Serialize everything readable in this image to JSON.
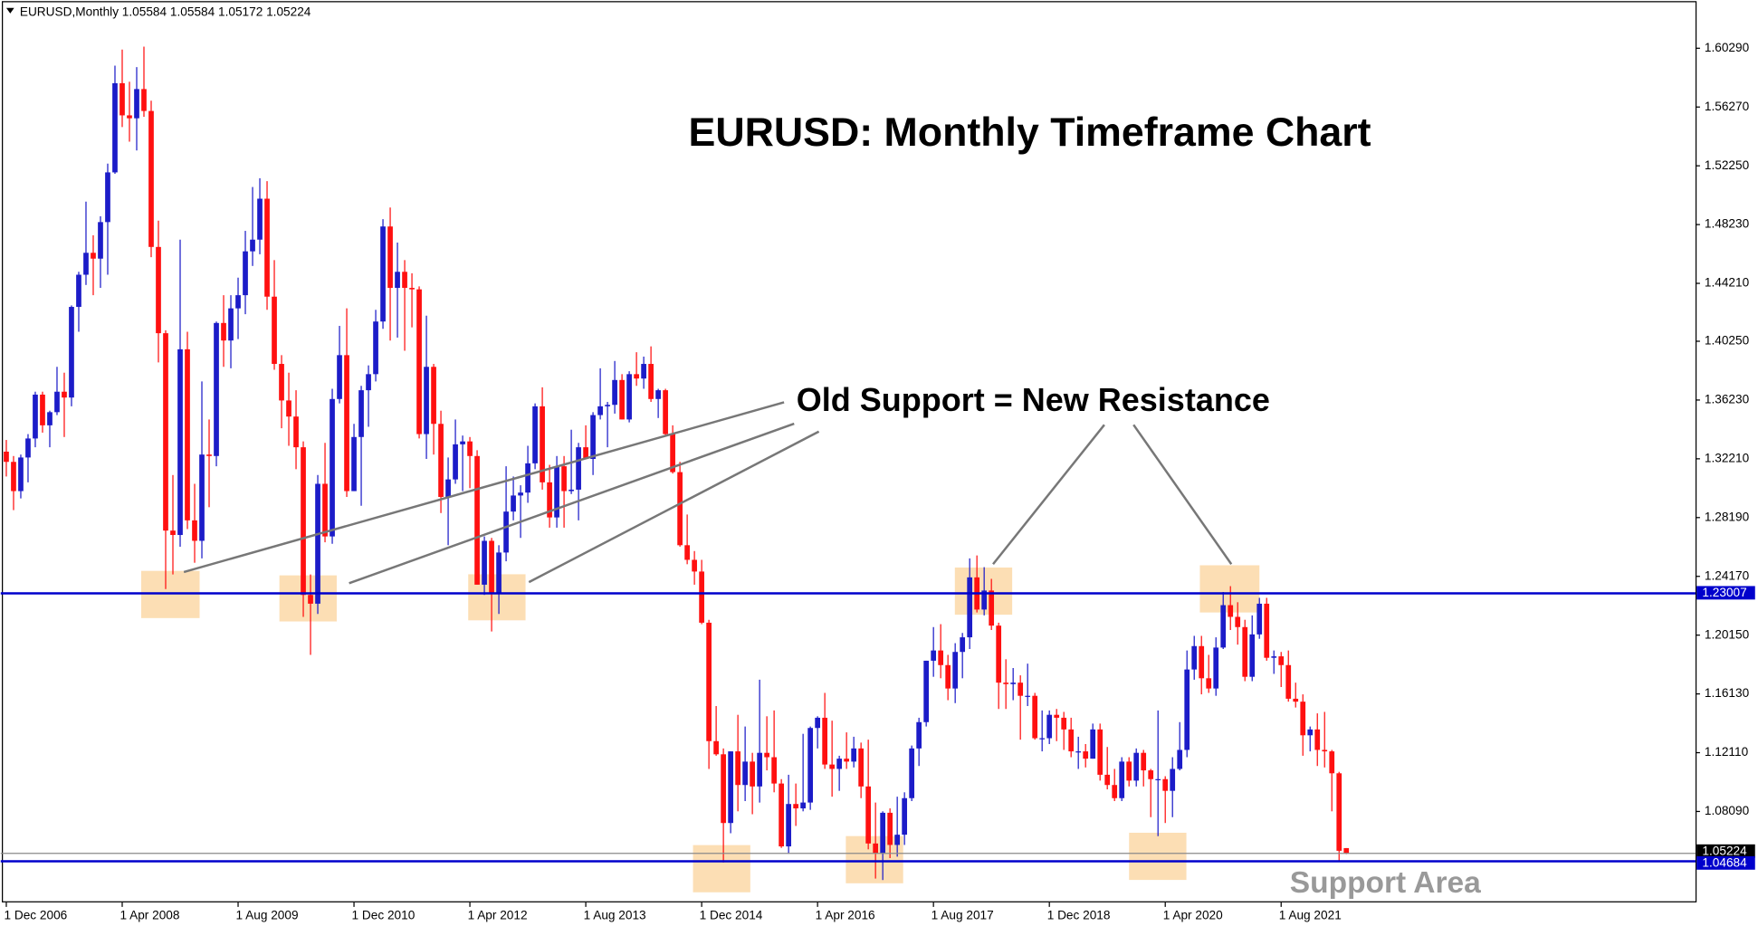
{
  "chart_data": {
    "type": "candlestick",
    "header": "EURUSD,Monthly  1.05584 1.05584 1.05172 1.05224",
    "title": "EURUSD: Monthly Timeframe Chart",
    "annotations": [
      "Old Support = New Resistance",
      "Support Area"
    ],
    "bull_color": "#1c1cc8",
    "bear_color": "#ff1010",
    "ylim": [
      1.0187,
      1.6359
    ],
    "yticks": [
      {
        "value": 1.0809,
        "label": "1.08090"
      },
      {
        "value": 1.1211,
        "label": "1.12110"
      },
      {
        "value": 1.1613,
        "label": "1.16130"
      },
      {
        "value": 1.2015,
        "label": "1.20150"
      },
      {
        "value": 1.2417,
        "label": "1.24170"
      },
      {
        "value": 1.2819,
        "label": "1.28190"
      },
      {
        "value": 1.3221,
        "label": "1.32210"
      },
      {
        "value": 1.3623,
        "label": "1.36230"
      },
      {
        "value": 1.4025,
        "label": "1.40250"
      },
      {
        "value": 1.4421,
        "label": "1.44210"
      },
      {
        "value": 1.4823,
        "label": "1.48230"
      },
      {
        "value": 1.5225,
        "label": "1.52250"
      },
      {
        "value": 1.5627,
        "label": "1.56270"
      },
      {
        "value": 1.6029,
        "label": "1.60290"
      }
    ],
    "hlines": [
      {
        "value": 1.23007,
        "color": "#0000cc"
      },
      {
        "value": 1.05224,
        "color": "#8a8a8a"
      },
      {
        "value": 1.04684,
        "color": "#0000cc"
      }
    ],
    "x": [
      "1 Dec 2006",
      null,
      null,
      null,
      null,
      null,
      null,
      null,
      null,
      null,
      null,
      null,
      null,
      null,
      null,
      null,
      "1 Apr 2008",
      null,
      null,
      null,
      null,
      null,
      null,
      null,
      null,
      null,
      null,
      null,
      null,
      null,
      null,
      null,
      "1 Aug 2009",
      null,
      null,
      null,
      null,
      null,
      null,
      null,
      null,
      null,
      null,
      null,
      null,
      null,
      null,
      null,
      "1 Dec 2010",
      null,
      null,
      null,
      null,
      null,
      null,
      null,
      null,
      null,
      null,
      null,
      null,
      null,
      null,
      null,
      "1 Apr 2012",
      null,
      null,
      null,
      null,
      null,
      null,
      null,
      null,
      null,
      null,
      null,
      null,
      null,
      null,
      null,
      "1 Aug 2013",
      null,
      null,
      null,
      null,
      null,
      null,
      null,
      null,
      null,
      null,
      null,
      null,
      null,
      null,
      null,
      "1 Dec 2014",
      null,
      null,
      null,
      null,
      null,
      null,
      null,
      null,
      null,
      null,
      null,
      null,
      null,
      null,
      null,
      "1 Apr 2016",
      null,
      null,
      null,
      null,
      null,
      null,
      null,
      null,
      null,
      null,
      null,
      null,
      null,
      null,
      null,
      "1 Aug 2017",
      null,
      null,
      null,
      null,
      null,
      null,
      null,
      null,
      null,
      null,
      null,
      null,
      null,
      null,
      null,
      "1 Dec 2018",
      null,
      null,
      null,
      null,
      null,
      null,
      null,
      null,
      null,
      null,
      null,
      null,
      null,
      null,
      null,
      "1 Apr 2020",
      null,
      null,
      null,
      null,
      null,
      null,
      null,
      null,
      null,
      null,
      null,
      null,
      null,
      null,
      null,
      "1 Aug 2021",
      null,
      null,
      null,
      null,
      null,
      null,
      null,
      null,
      null
    ],
    "candles": [
      [
        1.327,
        1.335,
        1.31,
        1.32
      ],
      [
        1.32,
        1.324,
        1.287,
        1.3
      ],
      [
        1.3,
        1.325,
        1.295,
        1.323
      ],
      [
        1.323,
        1.339,
        1.306,
        1.336
      ],
      [
        1.336,
        1.368,
        1.33,
        1.366
      ],
      [
        1.366,
        1.368,
        1.34,
        1.345
      ],
      [
        1.345,
        1.355,
        1.33,
        1.354
      ],
      [
        1.354,
        1.385,
        1.352,
        1.368
      ],
      [
        1.368,
        1.381,
        1.337,
        1.364
      ],
      [
        1.364,
        1.427,
        1.358,
        1.426
      ],
      [
        1.426,
        1.45,
        1.409,
        1.448
      ],
      [
        1.448,
        1.498,
        1.441,
        1.463
      ],
      [
        1.463,
        1.475,
        1.434,
        1.459
      ],
      [
        1.459,
        1.488,
        1.439,
        1.484
      ],
      [
        1.484,
        1.524,
        1.448,
        1.518
      ],
      [
        1.518,
        1.591,
        1.517,
        1.579
      ],
      [
        1.579,
        1.602,
        1.549,
        1.557
      ],
      [
        1.557,
        1.58,
        1.539,
        1.555
      ],
      [
        1.555,
        1.59,
        1.533,
        1.575
      ],
      [
        1.575,
        1.604,
        1.556,
        1.56
      ],
      [
        1.56,
        1.567,
        1.46,
        1.467
      ],
      [
        1.467,
        1.485,
        1.388,
        1.408
      ],
      [
        1.408,
        1.41,
        1.233,
        1.273
      ],
      [
        1.273,
        1.311,
        1.243,
        1.27
      ],
      [
        1.27,
        1.472,
        1.262,
        1.397
      ],
      [
        1.397,
        1.409,
        1.274,
        1.28
      ],
      [
        1.28,
        1.305,
        1.251,
        1.266
      ],
      [
        1.266,
        1.375,
        1.254,
        1.325
      ],
      [
        1.325,
        1.349,
        1.289,
        1.324
      ],
      [
        1.324,
        1.416,
        1.317,
        1.415
      ],
      [
        1.415,
        1.434,
        1.385,
        1.403
      ],
      [
        1.403,
        1.434,
        1.384,
        1.425
      ],
      [
        1.425,
        1.446,
        1.404,
        1.434
      ],
      [
        1.434,
        1.478,
        1.421,
        1.464
      ],
      [
        1.464,
        1.508,
        1.454,
        1.472
      ],
      [
        1.472,
        1.514,
        1.462,
        1.5
      ],
      [
        1.5,
        1.512,
        1.424,
        1.433
      ],
      [
        1.433,
        1.458,
        1.383,
        1.387
      ],
      [
        1.387,
        1.393,
        1.343,
        1.362
      ],
      [
        1.362,
        1.381,
        1.331,
        1.351
      ],
      [
        1.351,
        1.369,
        1.315,
        1.33
      ],
      [
        1.33,
        1.334,
        1.214,
        1.229
      ],
      [
        1.229,
        1.243,
        1.188,
        1.223
      ],
      [
        1.223,
        1.311,
        1.216,
        1.305
      ],
      [
        1.305,
        1.333,
        1.265,
        1.269
      ],
      [
        1.269,
        1.37,
        1.264,
        1.363
      ],
      [
        1.363,
        1.413,
        1.36,
        1.393
      ],
      [
        1.393,
        1.425,
        1.296,
        1.3
      ],
      [
        1.3,
        1.346,
        1.3,
        1.337
      ],
      [
        1.337,
        1.372,
        1.29,
        1.369
      ],
      [
        1.369,
        1.386,
        1.344,
        1.38
      ],
      [
        1.38,
        1.424,
        1.375,
        1.416
      ],
      [
        1.416,
        1.486,
        1.411,
        1.481
      ],
      [
        1.481,
        1.494,
        1.403,
        1.439
      ],
      [
        1.439,
        1.47,
        1.405,
        1.45
      ],
      [
        1.45,
        1.458,
        1.396,
        1.439
      ],
      [
        1.439,
        1.449,
        1.412,
        1.438
      ],
      [
        1.438,
        1.44,
        1.336,
        1.339
      ],
      [
        1.339,
        1.42,
        1.322,
        1.385
      ],
      [
        1.385,
        1.387,
        1.325,
        1.346
      ],
      [
        1.346,
        1.355,
        1.285,
        1.296
      ],
      [
        1.296,
        1.323,
        1.263,
        1.308
      ],
      [
        1.308,
        1.349,
        1.305,
        1.332
      ],
      [
        1.332,
        1.338,
        1.3,
        1.334
      ],
      [
        1.334,
        1.337,
        1.302,
        1.324
      ],
      [
        1.324,
        1.328,
        1.236,
        1.236
      ],
      [
        1.236,
        1.269,
        1.229,
        1.266
      ],
      [
        1.266,
        1.268,
        1.204,
        1.23
      ],
      [
        1.23,
        1.263,
        1.216,
        1.258
      ],
      [
        1.258,
        1.317,
        1.252,
        1.286
      ],
      [
        1.286,
        1.31,
        1.28,
        1.297
      ],
      [
        1.297,
        1.304,
        1.268,
        1.299
      ],
      [
        1.299,
        1.331,
        1.292,
        1.319
      ],
      [
        1.319,
        1.36,
        1.315,
        1.358
      ],
      [
        1.358,
        1.371,
        1.301,
        1.306
      ],
      [
        1.306,
        1.318,
        1.275,
        1.282
      ],
      [
        1.282,
        1.324,
        1.275,
        1.317
      ],
      [
        1.317,
        1.324,
        1.275,
        1.3
      ],
      [
        1.3,
        1.342,
        1.298,
        1.301
      ],
      [
        1.301,
        1.333,
        1.28,
        1.33
      ],
      [
        1.33,
        1.345,
        1.322,
        1.322
      ],
      [
        1.322,
        1.354,
        1.311,
        1.352
      ],
      [
        1.352,
        1.384,
        1.349,
        1.358
      ],
      [
        1.358,
        1.361,
        1.33,
        1.359
      ],
      [
        1.359,
        1.389,
        1.353,
        1.376
      ],
      [
        1.376,
        1.38,
        1.349,
        1.349
      ],
      [
        1.349,
        1.382,
        1.347,
        1.38
      ],
      [
        1.38,
        1.395,
        1.372,
        1.377
      ],
      [
        1.377,
        1.392,
        1.37,
        1.387
      ],
      [
        1.387,
        1.399,
        1.361,
        1.363
      ],
      [
        1.363,
        1.37,
        1.35,
        1.369
      ],
      [
        1.369,
        1.37,
        1.338,
        1.339
      ],
      [
        1.339,
        1.345,
        1.312,
        1.313
      ],
      [
        1.313,
        1.32,
        1.262,
        1.263
      ],
      [
        1.263,
        1.284,
        1.25,
        1.253
      ],
      [
        1.253,
        1.259,
        1.236,
        1.245
      ],
      [
        1.245,
        1.253,
        1.209,
        1.21
      ],
      [
        1.21,
        1.212,
        1.11,
        1.129
      ],
      [
        1.129,
        1.153,
        1.119,
        1.12
      ],
      [
        1.12,
        1.124,
        1.046,
        1.073
      ],
      [
        1.073,
        1.122,
        1.066,
        1.122
      ],
      [
        1.122,
        1.147,
        1.081,
        1.099
      ],
      [
        1.099,
        1.139,
        1.088,
        1.115
      ],
      [
        1.115,
        1.121,
        1.079,
        1.098
      ],
      [
        1.098,
        1.171,
        1.087,
        1.121
      ],
      [
        1.121,
        1.146,
        1.109,
        1.118
      ],
      [
        1.118,
        1.15,
        1.094,
        1.1
      ],
      [
        1.1,
        1.103,
        1.056,
        1.057
      ],
      [
        1.057,
        1.106,
        1.052,
        1.086
      ],
      [
        1.086,
        1.1,
        1.071,
        1.083
      ],
      [
        1.083,
        1.134,
        1.081,
        1.087
      ],
      [
        1.087,
        1.139,
        1.082,
        1.138
      ],
      [
        1.138,
        1.146,
        1.124,
        1.145
      ],
      [
        1.145,
        1.162,
        1.11,
        1.113
      ],
      [
        1.113,
        1.143,
        1.091,
        1.11
      ],
      [
        1.11,
        1.119,
        1.095,
        1.117
      ],
      [
        1.117,
        1.135,
        1.11,
        1.115
      ],
      [
        1.115,
        1.132,
        1.111,
        1.124
      ],
      [
        1.124,
        1.128,
        1.09,
        1.098
      ],
      [
        1.098,
        1.13,
        1.055,
        1.059
      ],
      [
        1.059,
        1.087,
        1.035,
        1.052
      ],
      [
        1.052,
        1.081,
        1.034,
        1.08
      ],
      [
        1.08,
        1.083,
        1.049,
        1.058
      ],
      [
        1.058,
        1.091,
        1.05,
        1.065
      ],
      [
        1.065,
        1.094,
        1.058,
        1.09
      ],
      [
        1.09,
        1.126,
        1.088,
        1.124
      ],
      [
        1.124,
        1.145,
        1.112,
        1.142
      ],
      [
        1.142,
        1.184,
        1.139,
        1.184
      ],
      [
        1.184,
        1.207,
        1.173,
        1.191
      ],
      [
        1.191,
        1.209,
        1.172,
        1.181
      ],
      [
        1.181,
        1.188,
        1.157,
        1.165
      ],
      [
        1.165,
        1.196,
        1.155,
        1.19
      ],
      [
        1.19,
        1.203,
        1.172,
        1.2
      ],
      [
        1.2,
        1.254,
        1.192,
        1.241
      ],
      [
        1.241,
        1.256,
        1.217,
        1.219
      ],
      [
        1.219,
        1.248,
        1.215,
        1.232
      ],
      [
        1.232,
        1.24,
        1.205,
        1.208
      ],
      [
        1.208,
        1.21,
        1.151,
        1.169
      ],
      [
        1.169,
        1.185,
        1.151,
        1.168
      ],
      [
        1.168,
        1.179,
        1.157,
        1.169
      ],
      [
        1.169,
        1.174,
        1.13,
        1.16
      ],
      [
        1.16,
        1.182,
        1.153,
        1.16
      ],
      [
        1.16,
        1.162,
        1.13,
        1.131
      ],
      [
        1.131,
        1.15,
        1.122,
        1.131
      ],
      [
        1.131,
        1.15,
        1.127,
        1.147
      ],
      [
        1.147,
        1.151,
        1.129,
        1.145
      ],
      [
        1.145,
        1.149,
        1.123,
        1.137
      ],
      [
        1.137,
        1.145,
        1.118,
        1.122
      ],
      [
        1.122,
        1.132,
        1.11,
        1.122
      ],
      [
        1.122,
        1.127,
        1.111,
        1.117
      ],
      [
        1.117,
        1.141,
        1.117,
        1.137
      ],
      [
        1.137,
        1.141,
        1.102,
        1.106
      ],
      [
        1.106,
        1.125,
        1.096,
        1.099
      ],
      [
        1.099,
        1.11,
        1.088,
        1.09
      ],
      [
        1.09,
        1.118,
        1.088,
        1.115
      ],
      [
        1.115,
        1.118,
        1.098,
        1.102
      ],
      [
        1.102,
        1.124,
        1.098,
        1.121
      ],
      [
        1.121,
        1.123,
        1.098,
        1.109
      ],
      [
        1.109,
        1.11,
        1.077,
        1.103
      ],
      [
        1.103,
        1.15,
        1.064,
        1.103
      ],
      [
        1.103,
        1.105,
        1.073,
        1.095
      ],
      [
        1.095,
        1.118,
        1.077,
        1.11
      ],
      [
        1.11,
        1.142,
        1.109,
        1.123
      ],
      [
        1.123,
        1.191,
        1.118,
        1.178
      ],
      [
        1.178,
        1.201,
        1.171,
        1.194
      ],
      [
        1.194,
        1.201,
        1.161,
        1.172
      ],
      [
        1.172,
        1.188,
        1.162,
        1.165
      ],
      [
        1.165,
        1.2,
        1.16,
        1.193
      ],
      [
        1.193,
        1.231,
        1.192,
        1.222
      ],
      [
        1.222,
        1.235,
        1.205,
        1.214
      ],
      [
        1.214,
        1.224,
        1.195,
        1.207
      ],
      [
        1.207,
        1.212,
        1.17,
        1.173
      ],
      [
        1.173,
        1.215,
        1.17,
        1.202
      ],
      [
        1.202,
        1.227,
        1.199,
        1.223
      ],
      [
        1.223,
        1.227,
        1.184,
        1.186
      ],
      [
        1.186,
        1.191,
        1.175,
        1.187
      ],
      [
        1.187,
        1.19,
        1.166,
        1.181
      ],
      [
        1.181,
        1.191,
        1.156,
        1.158
      ],
      [
        1.158,
        1.169,
        1.152,
        1.156
      ],
      [
        1.156,
        1.161,
        1.119,
        1.133
      ],
      [
        1.133,
        1.139,
        1.122,
        1.137
      ],
      [
        1.137,
        1.148,
        1.112,
        1.123
      ],
      [
        1.123,
        1.149,
        1.111,
        1.122
      ],
      [
        1.122,
        1.123,
        1.081,
        1.107
      ],
      [
        1.107,
        1.108,
        1.047,
        1.054
      ],
      [
        1.05584,
        1.05584,
        1.05172,
        1.05224
      ]
    ]
  }
}
